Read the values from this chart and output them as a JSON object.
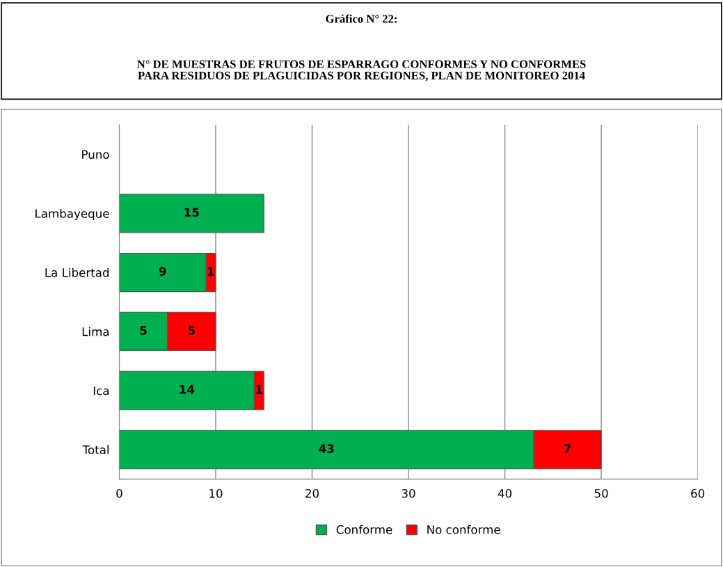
{
  "chart_data": {
    "type": "bar",
    "orientation": "horizontal",
    "stacked": true,
    "title": "Gráfico N° 22:",
    "subtitle": "N° DE MUESTRAS DE FRUTOS DE ESPARRAGO CONFORMES Y NO CONFORMES\nPARA RESIDUOS DE PLAGUICIDAS POR REGIONES, PLAN DE MONITOREO 2014",
    "categories": [
      "Puno",
      "Lambayeque",
      "La Libertad",
      "Lima",
      "Ica",
      "Total"
    ],
    "series": [
      {
        "name": "Conforme",
        "color": "#00b050",
        "values": [
          null,
          15,
          9,
          5,
          14,
          43
        ]
      },
      {
        "name": "No conforme",
        "color": "#ff0000",
        "values": [
          null,
          null,
          1,
          5,
          1,
          7
        ]
      }
    ],
    "xlim": [
      0,
      60
    ],
    "xticks": [
      0,
      10,
      20,
      30,
      40,
      50,
      60
    ],
    "grid": "x",
    "legend": "bottom",
    "data_labels": true
  }
}
